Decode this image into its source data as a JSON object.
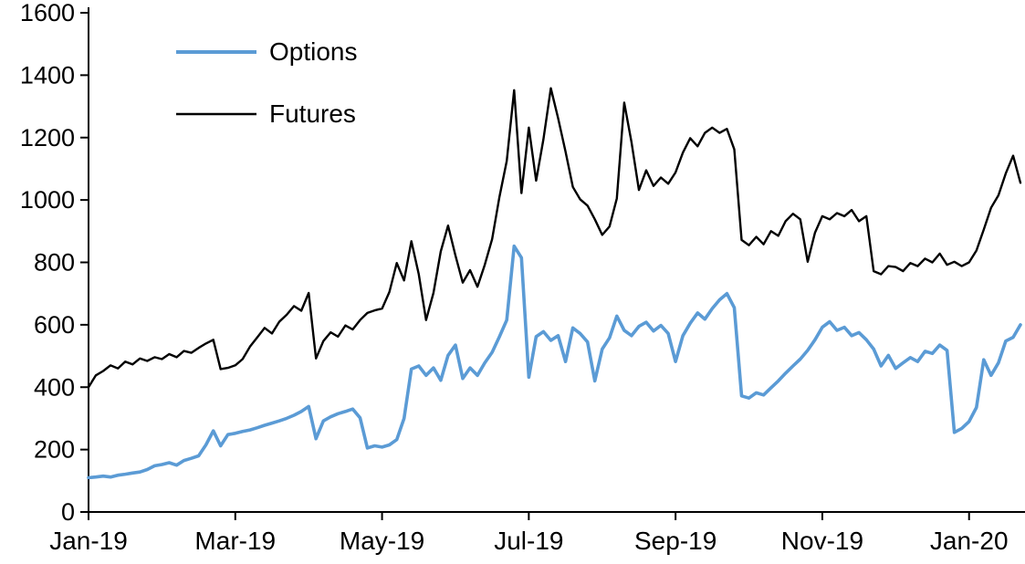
{
  "chart_data": {
    "type": "line",
    "title": "",
    "xlabel": "",
    "ylabel": "",
    "grid": false,
    "legend_position": "top-left-inside",
    "ylim": [
      0,
      1600
    ],
    "y_ticks": [
      0,
      200,
      400,
      600,
      800,
      1000,
      1200,
      1400,
      1600
    ],
    "x_tick_labels": [
      "Jan-19",
      "Mar-19",
      "May-19",
      "Jul-19",
      "Sep-19",
      "Nov-19",
      "Jan-20"
    ],
    "x_tick_positions_months": [
      0,
      2,
      4,
      6,
      8,
      10,
      12
    ],
    "x_range_months": [
      0,
      12.7
    ],
    "point_spacing_months": 0.1,
    "axis_color": "#000000",
    "series": [
      {
        "name": "Options",
        "color": "#5B9BD5",
        "stroke_width": 3.6,
        "values": [
          110,
          112,
          115,
          112,
          118,
          121,
          125,
          128,
          136,
          148,
          152,
          158,
          150,
          165,
          172,
          180,
          215,
          260,
          212,
          248,
          252,
          258,
          263,
          270,
          278,
          285,
          292,
          300,
          310,
          322,
          338,
          235,
          292,
          305,
          315,
          322,
          330,
          302,
          205,
          212,
          208,
          215,
          232,
          300,
          458,
          468,
          438,
          462,
          422,
          502,
          535,
          428,
          462,
          438,
          478,
          512,
          562,
          615,
          852,
          815,
          432,
          562,
          578,
          550,
          565,
          482,
          590,
          572,
          545,
          420,
          522,
          558,
          628,
          582,
          565,
          595,
          608,
          580,
          598,
          572,
          482,
          565,
          605,
          638,
          618,
          652,
          680,
          700,
          655,
          372,
          365,
          382,
          375,
          398,
          420,
          445,
          468,
          490,
          518,
          552,
          592,
          610,
          582,
          592,
          565,
          575,
          552,
          522,
          468,
          502,
          460,
          478,
          495,
          482,
          515,
          508,
          535,
          518,
          255,
          268,
          290,
          335,
          488,
          438,
          478,
          548,
          560,
          600
        ]
      },
      {
        "name": "Futures",
        "color": "#000000",
        "stroke_width": 2.4,
        "values": [
          400,
          438,
          452,
          470,
          460,
          482,
          473,
          492,
          484,
          496,
          490,
          506,
          496,
          516,
          510,
          526,
          540,
          552,
          458,
          462,
          470,
          490,
          530,
          560,
          590,
          572,
          610,
          632,
          660,
          645,
          702,
          492,
          548,
          576,
          562,
          598,
          585,
          615,
          638,
          646,
          652,
          705,
          798,
          742,
          868,
          762,
          615,
          702,
          835,
          918,
          822,
          735,
          775,
          722,
          792,
          875,
          1010,
          1125,
          1352,
          1022,
          1232,
          1062,
          1195,
          1358,
          1262,
          1155,
          1042,
          1002,
          982,
          938,
          888,
          915,
          1005,
          1312,
          1185,
          1032,
          1095,
          1045,
          1072,
          1052,
          1088,
          1152,
          1198,
          1172,
          1215,
          1232,
          1215,
          1228,
          1162,
          872,
          855,
          882,
          858,
          900,
          885,
          932,
          956,
          938,
          802,
          895,
          948,
          938,
          958,
          948,
          968,
          932,
          948,
          772,
          762,
          788,
          785,
          772,
          798,
          788,
          812,
          800,
          828,
          792,
          802,
          788,
          800,
          838,
          905,
          975,
          1015,
          1085,
          1142,
          1055
        ]
      }
    ]
  }
}
